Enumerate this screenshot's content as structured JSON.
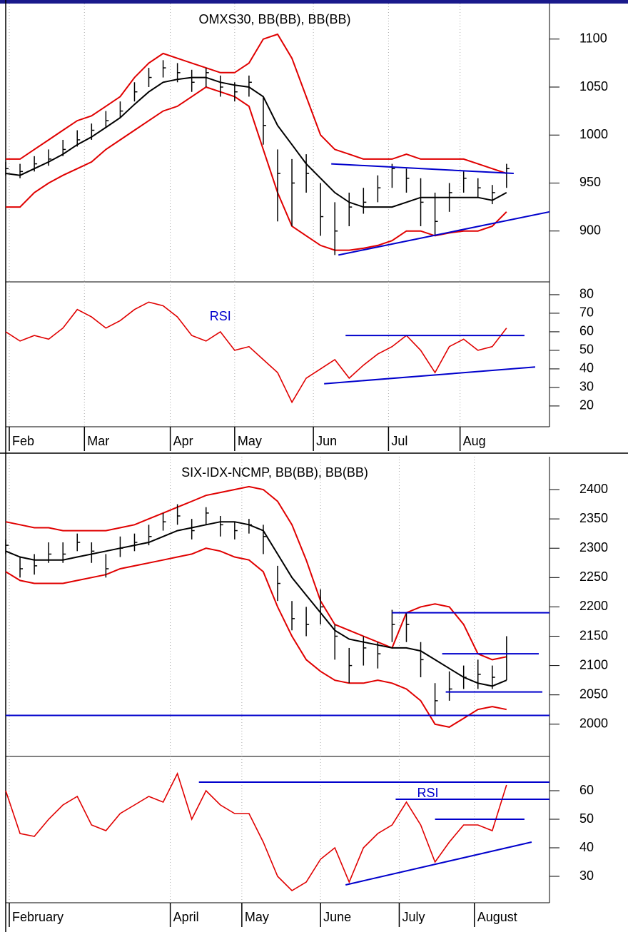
{
  "chart_data": [
    {
      "type": "ohlc",
      "title": "OMXS30, BB(BB), BB(BB)",
      "x": [
        0,
        4,
        8,
        12,
        16,
        20,
        24,
        28,
        32,
        36,
        40,
        44,
        48,
        52,
        56,
        60,
        64,
        68,
        72,
        76,
        80,
        84,
        88,
        92,
        96,
        100,
        104,
        108,
        112,
        116,
        120,
        124,
        128,
        132,
        136,
        140
      ],
      "close": [
        965,
        962,
        970,
        975,
        985,
        995,
        1005,
        1015,
        1025,
        1045,
        1060,
        1070,
        1065,
        1055,
        1065,
        1050,
        1045,
        1055,
        1010,
        960,
        950,
        960,
        915,
        900,
        925,
        930,
        945,
        965,
        955,
        930,
        910,
        940,
        955,
        945,
        940,
        965
      ],
      "high": [
        972,
        970,
        978,
        985,
        995,
        1005,
        1012,
        1025,
        1035,
        1055,
        1070,
        1078,
        1075,
        1068,
        1070,
        1062,
        1055,
        1062,
        1040,
        985,
        975,
        980,
        950,
        930,
        940,
        945,
        958,
        970,
        965,
        955,
        940,
        950,
        962,
        955,
        948,
        970
      ],
      "low": [
        958,
        955,
        962,
        968,
        978,
        988,
        995,
        1008,
        1018,
        1035,
        1050,
        1060,
        1055,
        1045,
        1050,
        1040,
        1035,
        1040,
        990,
        910,
        905,
        940,
        895,
        875,
        905,
        918,
        930,
        945,
        940,
        905,
        895,
        920,
        940,
        935,
        928,
        945
      ],
      "bar_color": "#000000",
      "lines": [
        {
          "color": "#e00000",
          "values": [
            975,
            975,
            985,
            995,
            1005,
            1015,
            1020,
            1030,
            1040,
            1060,
            1075,
            1085,
            1080,
            1075,
            1070,
            1065,
            1065,
            1075,
            1100,
            1105,
            1080,
            1040,
            1000,
            985,
            980,
            975,
            975,
            975,
            980,
            975,
            975,
            975,
            975,
            970,
            965,
            960
          ]
        },
        {
          "color": "#000000",
          "values": [
            960,
            958,
            965,
            972,
            980,
            990,
            998,
            1008,
            1018,
            1032,
            1045,
            1055,
            1058,
            1060,
            1060,
            1055,
            1052,
            1050,
            1040,
            1010,
            990,
            970,
            955,
            940,
            930,
            925,
            925,
            925,
            930,
            935,
            935,
            935,
            935,
            935,
            932,
            940
          ]
        },
        {
          "color": "#e00000",
          "values": [
            925,
            925,
            940,
            950,
            958,
            965,
            972,
            985,
            995,
            1005,
            1015,
            1025,
            1030,
            1040,
            1050,
            1045,
            1040,
            1030,
            985,
            940,
            905,
            895,
            885,
            880,
            880,
            882,
            885,
            890,
            900,
            900,
            895,
            898,
            900,
            900,
            905,
            920
          ]
        }
      ],
      "trendlines": [
        {
          "color": "#0000cc",
          "x": [
            91,
            142
          ],
          "y": [
            970,
            960
          ]
        },
        {
          "color": "#0000cc",
          "x": [
            93,
            152
          ],
          "y": [
            875,
            920
          ]
        }
      ],
      "xlim": [
        0,
        152
      ],
      "ylim": [
        847,
        1137
      ],
      "yticks": [
        900,
        950,
        1000,
        1050,
        1100
      ],
      "xgrid": [
        1,
        22,
        46,
        64,
        86,
        107,
        127
      ]
    },
    {
      "type": "line",
      "x": [
        0,
        4,
        8,
        12,
        16,
        20,
        24,
        28,
        32,
        36,
        40,
        44,
        48,
        52,
        56,
        60,
        64,
        68,
        72,
        76,
        80,
        84,
        88,
        92,
        96,
        100,
        104,
        108,
        112,
        116,
        120,
        124,
        128,
        132,
        136,
        140
      ],
      "values": [
        60,
        55,
        58,
        56,
        62,
        72,
        68,
        62,
        66,
        72,
        76,
        74,
        68,
        58,
        55,
        60,
        50,
        52,
        45,
        38,
        22,
        35,
        40,
        45,
        35,
        42,
        48,
        52,
        58,
        50,
        38,
        52,
        56,
        50,
        52,
        62
      ],
      "color": "#e00000",
      "annotations": [
        {
          "text": "RSI",
          "x": 60,
          "y": 68,
          "color": "#0000cc"
        }
      ],
      "trendlines": [
        {
          "color": "#0000cc",
          "x": [
            95,
            145
          ],
          "y": [
            58,
            58
          ]
        },
        {
          "color": "#0000cc",
          "x": [
            89,
            148
          ],
          "y": [
            32,
            41
          ]
        }
      ],
      "xlim": [
        0,
        152
      ],
      "ylim": [
        8.8,
        86.9
      ],
      "yticks": [
        20,
        30,
        40,
        50,
        60,
        70,
        80
      ],
      "xticks": [
        {
          "value": 1,
          "label": "Feb"
        },
        {
          "value": 22,
          "label": "Mar"
        },
        {
          "value": 46,
          "label": "Apr"
        },
        {
          "value": 64,
          "label": "May"
        },
        {
          "value": 86,
          "label": "Jun"
        },
        {
          "value": 107,
          "label": "Jul"
        },
        {
          "value": 127,
          "label": "Aug"
        }
      ]
    },
    {
      "type": "ohlc",
      "title": "SIX-IDX-NCMP, BB(BB), BB(BB)",
      "x": [
        0,
        4,
        8,
        12,
        16,
        20,
        24,
        28,
        32,
        36,
        40,
        44,
        48,
        52,
        56,
        60,
        64,
        68,
        72,
        76,
        80,
        84,
        88,
        92,
        96,
        100,
        104,
        108,
        112,
        116,
        120,
        124,
        128,
        132,
        136,
        140
      ],
      "close": [
        2305,
        2265,
        2270,
        2290,
        2290,
        2310,
        2295,
        2265,
        2300,
        2310,
        2320,
        2345,
        2355,
        2330,
        2360,
        2340,
        2330,
        2340,
        2320,
        2240,
        2180,
        2170,
        2200,
        2150,
        2100,
        2130,
        2120,
        2170,
        2170,
        2110,
        2040,
        2060,
        2080,
        2085,
        2080,
        2120
      ],
      "high": [
        2315,
        2285,
        2290,
        2310,
        2310,
        2325,
        2310,
        2290,
        2320,
        2325,
        2340,
        2360,
        2375,
        2350,
        2370,
        2355,
        2345,
        2350,
        2340,
        2270,
        2210,
        2200,
        2230,
        2170,
        2130,
        2150,
        2140,
        2195,
        2190,
        2140,
        2070,
        2090,
        2100,
        2110,
        2100,
        2150
      ],
      "low": [
        2290,
        2250,
        2255,
        2275,
        2275,
        2295,
        2275,
        2250,
        2285,
        2295,
        2305,
        2330,
        2340,
        2315,
        2340,
        2320,
        2315,
        2325,
        2290,
        2210,
        2160,
        2150,
        2170,
        2110,
        2070,
        2100,
        2095,
        2140,
        2140,
        2080,
        2015,
        2040,
        2060,
        2060,
        2060,
        2075
      ],
      "bar_color": "#000000",
      "lines": [
        {
          "color": "#e00000",
          "values": [
            2345,
            2340,
            2335,
            2335,
            2330,
            2330,
            2330,
            2330,
            2335,
            2340,
            2350,
            2360,
            2370,
            2380,
            2390,
            2395,
            2400,
            2405,
            2400,
            2380,
            2340,
            2280,
            2210,
            2170,
            2160,
            2150,
            2140,
            2130,
            2190,
            2200,
            2205,
            2200,
            2170,
            2120,
            2110,
            2115
          ]
        },
        {
          "color": "#000000",
          "values": [
            2295,
            2285,
            2280,
            2280,
            2280,
            2285,
            2290,
            2295,
            2300,
            2305,
            2310,
            2320,
            2330,
            2335,
            2340,
            2345,
            2345,
            2340,
            2330,
            2290,
            2250,
            2220,
            2190,
            2160,
            2145,
            2140,
            2135,
            2130,
            2130,
            2125,
            2110,
            2095,
            2080,
            2070,
            2065,
            2075
          ]
        },
        {
          "color": "#e00000",
          "values": [
            2260,
            2245,
            2240,
            2240,
            2240,
            2245,
            2250,
            2255,
            2265,
            2270,
            2275,
            2280,
            2285,
            2290,
            2300,
            2295,
            2285,
            2280,
            2260,
            2200,
            2150,
            2110,
            2090,
            2075,
            2070,
            2070,
            2075,
            2070,
            2060,
            2040,
            2000,
            1995,
            2010,
            2025,
            2030,
            2025
          ]
        }
      ],
      "trendlines": [
        {
          "color": "#0000cc",
          "x": [
            108,
            152
          ],
          "y": [
            2190,
            2190
          ]
        },
        {
          "color": "#0000cc",
          "x": [
            122,
            149
          ],
          "y": [
            2120,
            2120
          ]
        },
        {
          "color": "#0000cc",
          "x": [
            123,
            150
          ],
          "y": [
            2055,
            2055
          ]
        },
        {
          "color": "#0000cc",
          "x": [
            0,
            152
          ],
          "y": [
            2015,
            2015
          ]
        }
      ],
      "xlim": [
        0,
        152
      ],
      "ylim": [
        1945,
        2456
      ],
      "yticks": [
        2000,
        2050,
        2100,
        2150,
        2200,
        2250,
        2300,
        2350,
        2400
      ],
      "xgrid": [
        1,
        46,
        66,
        88,
        110,
        131
      ]
    },
    {
      "type": "line",
      "x": [
        0,
        4,
        8,
        12,
        16,
        20,
        24,
        28,
        32,
        36,
        40,
        44,
        48,
        52,
        56,
        60,
        64,
        68,
        72,
        76,
        80,
        84,
        88,
        92,
        96,
        100,
        104,
        108,
        112,
        116,
        120,
        124,
        128,
        132,
        136,
        140
      ],
      "values": [
        60,
        45,
        44,
        50,
        55,
        58,
        48,
        46,
        52,
        55,
        58,
        56,
        66,
        50,
        60,
        55,
        52,
        52,
        42,
        30,
        25,
        28,
        36,
        40,
        28,
        40,
        45,
        48,
        56,
        48,
        35,
        42,
        48,
        48,
        46,
        62
      ],
      "color": "#e00000",
      "annotations": [
        {
          "text": "RSI",
          "x": 118,
          "y": 59,
          "color": "#0000cc"
        }
      ],
      "trendlines": [
        {
          "color": "#0000cc",
          "x": [
            54,
            152
          ],
          "y": [
            63,
            63
          ]
        },
        {
          "color": "#0000cc",
          "x": [
            109,
            152
          ],
          "y": [
            57,
            57
          ]
        },
        {
          "color": "#0000cc",
          "x": [
            120,
            145
          ],
          "y": [
            50,
            50
          ]
        },
        {
          "color": "#0000cc",
          "x": [
            95,
            147
          ],
          "y": [
            27,
            42
          ]
        }
      ],
      "xlim": [
        0,
        152
      ],
      "ylim": [
        20.75,
        72
      ],
      "yticks": [
        30,
        40,
        50,
        60
      ],
      "xticks": [
        {
          "value": 1,
          "label": "February"
        },
        {
          "value": 46,
          "label": "April"
        },
        {
          "value": 66,
          "label": "May"
        },
        {
          "value": 88,
          "label": "June"
        },
        {
          "value": 110,
          "label": "July"
        },
        {
          "value": 131,
          "label": "August"
        }
      ]
    }
  ]
}
